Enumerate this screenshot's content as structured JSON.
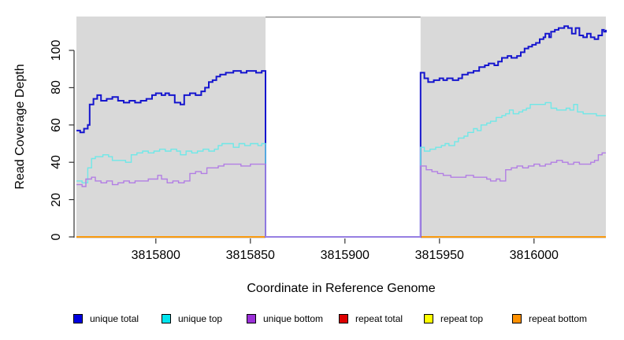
{
  "chart_data": {
    "type": "line",
    "subtype": "step",
    "title": "",
    "xlabel": "Coordinate in Reference Genome",
    "ylabel": "Read Coverage Depth",
    "xlim": [
      3815758,
      3816038
    ],
    "ylim": [
      0,
      118
    ],
    "x_ticks": [
      3815800,
      3815850,
      3815900,
      3815950,
      3816000
    ],
    "y_ticks": [
      0,
      20,
      40,
      60,
      80,
      100
    ],
    "grid": false,
    "legend_position": "bottom",
    "plot_bg_color": "#D9D9D9",
    "masked_region": {
      "from": 3815858,
      "to": 3815940,
      "fill": "#FFFFFF",
      "border_color": "#8C8C8C"
    },
    "series": [
      {
        "name": "unique total",
        "line_color": "#1515CE",
        "legend_fill": "#0000E0",
        "line_width": 2,
        "layer": "above-mask",
        "points": [
          [
            3815758,
            57
          ],
          [
            3815760,
            56
          ],
          [
            3815762,
            58
          ],
          [
            3815764,
            60
          ],
          [
            3815765,
            71
          ],
          [
            3815767,
            74
          ],
          [
            3815769,
            76
          ],
          [
            3815771,
            73
          ],
          [
            3815774,
            74
          ],
          [
            3815777,
            75
          ],
          [
            3815780,
            73
          ],
          [
            3815783,
            72
          ],
          [
            3815786,
            73
          ],
          [
            3815789,
            72
          ],
          [
            3815792,
            73
          ],
          [
            3815795,
            74
          ],
          [
            3815798,
            76
          ],
          [
            3815800,
            77
          ],
          [
            3815803,
            76
          ],
          [
            3815805,
            77
          ],
          [
            3815807,
            76
          ],
          [
            3815810,
            72
          ],
          [
            3815813,
            71
          ],
          [
            3815815,
            76
          ],
          [
            3815818,
            77
          ],
          [
            3815821,
            76
          ],
          [
            3815824,
            78
          ],
          [
            3815826,
            80
          ],
          [
            3815828,
            83
          ],
          [
            3815830,
            84
          ],
          [
            3815832,
            86
          ],
          [
            3815834,
            87
          ],
          [
            3815837,
            88
          ],
          [
            3815841,
            89
          ],
          [
            3815845,
            88
          ],
          [
            3815848,
            89
          ],
          [
            3815853,
            88
          ],
          [
            3815856,
            89
          ],
          [
            3815858,
            0
          ],
          [
            3815940,
            88
          ],
          [
            3815942,
            85
          ],
          [
            3815944,
            83
          ],
          [
            3815947,
            84
          ],
          [
            3815950,
            85
          ],
          [
            3815952,
            84
          ],
          [
            3815954,
            85
          ],
          [
            3815957,
            84
          ],
          [
            3815960,
            85
          ],
          [
            3815962,
            87
          ],
          [
            3815965,
            88
          ],
          [
            3815968,
            89
          ],
          [
            3815971,
            91
          ],
          [
            3815974,
            92
          ],
          [
            3815976,
            93
          ],
          [
            3815979,
            92
          ],
          [
            3815981,
            94
          ],
          [
            3815983,
            96
          ],
          [
            3815986,
            97
          ],
          [
            3815988,
            96
          ],
          [
            3815991,
            97
          ],
          [
            3815993,
            99
          ],
          [
            3815995,
            101
          ],
          [
            3815997,
            102
          ],
          [
            3815999,
            103
          ],
          [
            3816001,
            104
          ],
          [
            3816003,
            106
          ],
          [
            3816005,
            107
          ],
          [
            3816006,
            109
          ],
          [
            3816008,
            107
          ],
          [
            3816009,
            110
          ],
          [
            3816011,
            111
          ],
          [
            3816013,
            112
          ],
          [
            3816016,
            113
          ],
          [
            3816018,
            112
          ],
          [
            3816020,
            109
          ],
          [
            3816022,
            112
          ],
          [
            3816024,
            108
          ],
          [
            3816026,
            107
          ],
          [
            3816028,
            109
          ],
          [
            3816030,
            107
          ],
          [
            3816032,
            106
          ],
          [
            3816034,
            108
          ],
          [
            3816036,
            111
          ],
          [
            3816037,
            110
          ],
          [
            3816038,
            111
          ]
        ]
      },
      {
        "name": "unique top",
        "line_color": "#6FE8E8",
        "legend_fill": "#00E5EE",
        "line_width": 1.4,
        "layer": "above-mask",
        "points": [
          [
            3815758,
            30
          ],
          [
            3815761,
            29
          ],
          [
            3815764,
            37
          ],
          [
            3815766,
            42
          ],
          [
            3815768,
            43
          ],
          [
            3815772,
            44
          ],
          [
            3815775,
            43
          ],
          [
            3815777,
            41
          ],
          [
            3815781,
            41
          ],
          [
            3815784,
            40
          ],
          [
            3815787,
            44
          ],
          [
            3815790,
            45
          ],
          [
            3815793,
            46
          ],
          [
            3815796,
            45
          ],
          [
            3815799,
            46
          ],
          [
            3815802,
            47
          ],
          [
            3815805,
            46
          ],
          [
            3815808,
            47
          ],
          [
            3815811,
            46
          ],
          [
            3815813,
            44
          ],
          [
            3815816,
            46
          ],
          [
            3815819,
            45
          ],
          [
            3815822,
            46
          ],
          [
            3815825,
            47
          ],
          [
            3815828,
            46
          ],
          [
            3815831,
            47
          ],
          [
            3815833,
            49
          ],
          [
            3815835,
            50
          ],
          [
            3815838,
            50
          ],
          [
            3815841,
            48
          ],
          [
            3815844,
            50
          ],
          [
            3815847,
            49
          ],
          [
            3815850,
            50
          ],
          [
            3815854,
            49
          ],
          [
            3815856,
            50
          ],
          [
            3815858,
            0
          ],
          [
            3815940,
            48
          ],
          [
            3815942,
            46
          ],
          [
            3815945,
            47
          ],
          [
            3815948,
            48
          ],
          [
            3815951,
            49
          ],
          [
            3815953,
            50
          ],
          [
            3815955,
            49
          ],
          [
            3815958,
            51
          ],
          [
            3815960,
            53
          ],
          [
            3815963,
            54
          ],
          [
            3815965,
            56
          ],
          [
            3815968,
            58
          ],
          [
            3815970,
            57
          ],
          [
            3815972,
            60
          ],
          [
            3815975,
            61
          ],
          [
            3815977,
            62
          ],
          [
            3815980,
            64
          ],
          [
            3815983,
            65
          ],
          [
            3815985,
            66
          ],
          [
            3815987,
            68
          ],
          [
            3815989,
            66
          ],
          [
            3815992,
            67
          ],
          [
            3815994,
            68
          ],
          [
            3815996,
            69
          ],
          [
            3815998,
            71
          ],
          [
            3816002,
            71
          ],
          [
            3816006,
            72
          ],
          [
            3816009,
            69
          ],
          [
            3816012,
            68
          ],
          [
            3816015,
            68
          ],
          [
            3816017,
            69
          ],
          [
            3816019,
            68
          ],
          [
            3816021,
            71
          ],
          [
            3816023,
            67
          ],
          [
            3816026,
            66
          ],
          [
            3816030,
            66
          ],
          [
            3816033,
            65
          ],
          [
            3816038,
            65
          ]
        ]
      },
      {
        "name": "unique bottom",
        "line_color": "#B27EE4",
        "legend_fill": "#9B30D8",
        "line_width": 1.4,
        "layer": "above-mask",
        "points": [
          [
            3815758,
            28
          ],
          [
            3815761,
            27
          ],
          [
            3815763,
            31
          ],
          [
            3815766,
            32
          ],
          [
            3815768,
            30
          ],
          [
            3815771,
            29
          ],
          [
            3815774,
            30
          ],
          [
            3815777,
            28
          ],
          [
            3815780,
            29
          ],
          [
            3815783,
            30
          ],
          [
            3815786,
            29
          ],
          [
            3815789,
            30
          ],
          [
            3815793,
            30
          ],
          [
            3815796,
            31
          ],
          [
            3815799,
            31
          ],
          [
            3815801,
            33
          ],
          [
            3815803,
            31
          ],
          [
            3815806,
            29
          ],
          [
            3815809,
            30
          ],
          [
            3815812,
            29
          ],
          [
            3815815,
            30
          ],
          [
            3815818,
            34
          ],
          [
            3815821,
            35
          ],
          [
            3815824,
            34
          ],
          [
            3815827,
            37
          ],
          [
            3815830,
            37
          ],
          [
            3815833,
            38
          ],
          [
            3815836,
            39
          ],
          [
            3815840,
            39
          ],
          [
            3815845,
            38
          ],
          [
            3815850,
            39
          ],
          [
            3815856,
            39
          ],
          [
            3815858,
            0
          ],
          [
            3815940,
            38
          ],
          [
            3815943,
            36
          ],
          [
            3815946,
            35
          ],
          [
            3815949,
            34
          ],
          [
            3815952,
            33
          ],
          [
            3815956,
            32
          ],
          [
            3815960,
            32
          ],
          [
            3815964,
            33
          ],
          [
            3815968,
            32
          ],
          [
            3815972,
            32
          ],
          [
            3815975,
            31
          ],
          [
            3815977,
            30
          ],
          [
            3815980,
            31
          ],
          [
            3815982,
            30
          ],
          [
            3815985,
            36
          ],
          [
            3815988,
            37
          ],
          [
            3815991,
            38
          ],
          [
            3815994,
            37
          ],
          [
            3815997,
            38
          ],
          [
            3816000,
            39
          ],
          [
            3816003,
            38
          ],
          [
            3816006,
            39
          ],
          [
            3816009,
            40
          ],
          [
            3816012,
            41
          ],
          [
            3816015,
            40
          ],
          [
            3816018,
            39
          ],
          [
            3816021,
            40
          ],
          [
            3816024,
            39
          ],
          [
            3816027,
            39
          ],
          [
            3816030,
            40
          ],
          [
            3816032,
            41
          ],
          [
            3816034,
            44
          ],
          [
            3816036,
            45
          ],
          [
            3816038,
            45
          ]
        ]
      },
      {
        "name": "repeat total",
        "line_color": "#DD0000",
        "legend_fill": "#DD0000",
        "line_width": 1.4,
        "layer": "below-mask",
        "points": [
          [
            3815758,
            0
          ],
          [
            3816038,
            0
          ]
        ]
      },
      {
        "name": "repeat top",
        "line_color": "#FFFF00",
        "legend_fill": "#FFFF00",
        "line_width": 1.4,
        "layer": "below-mask",
        "points": [
          [
            3815758,
            0
          ],
          [
            3816038,
            0
          ]
        ]
      },
      {
        "name": "repeat bottom",
        "line_color": "#FF9100",
        "legend_fill": "#FF9100",
        "line_width": 1.6,
        "layer": "below-mask",
        "points": [
          [
            3815758,
            0
          ],
          [
            3816038,
            0
          ]
        ]
      }
    ]
  }
}
